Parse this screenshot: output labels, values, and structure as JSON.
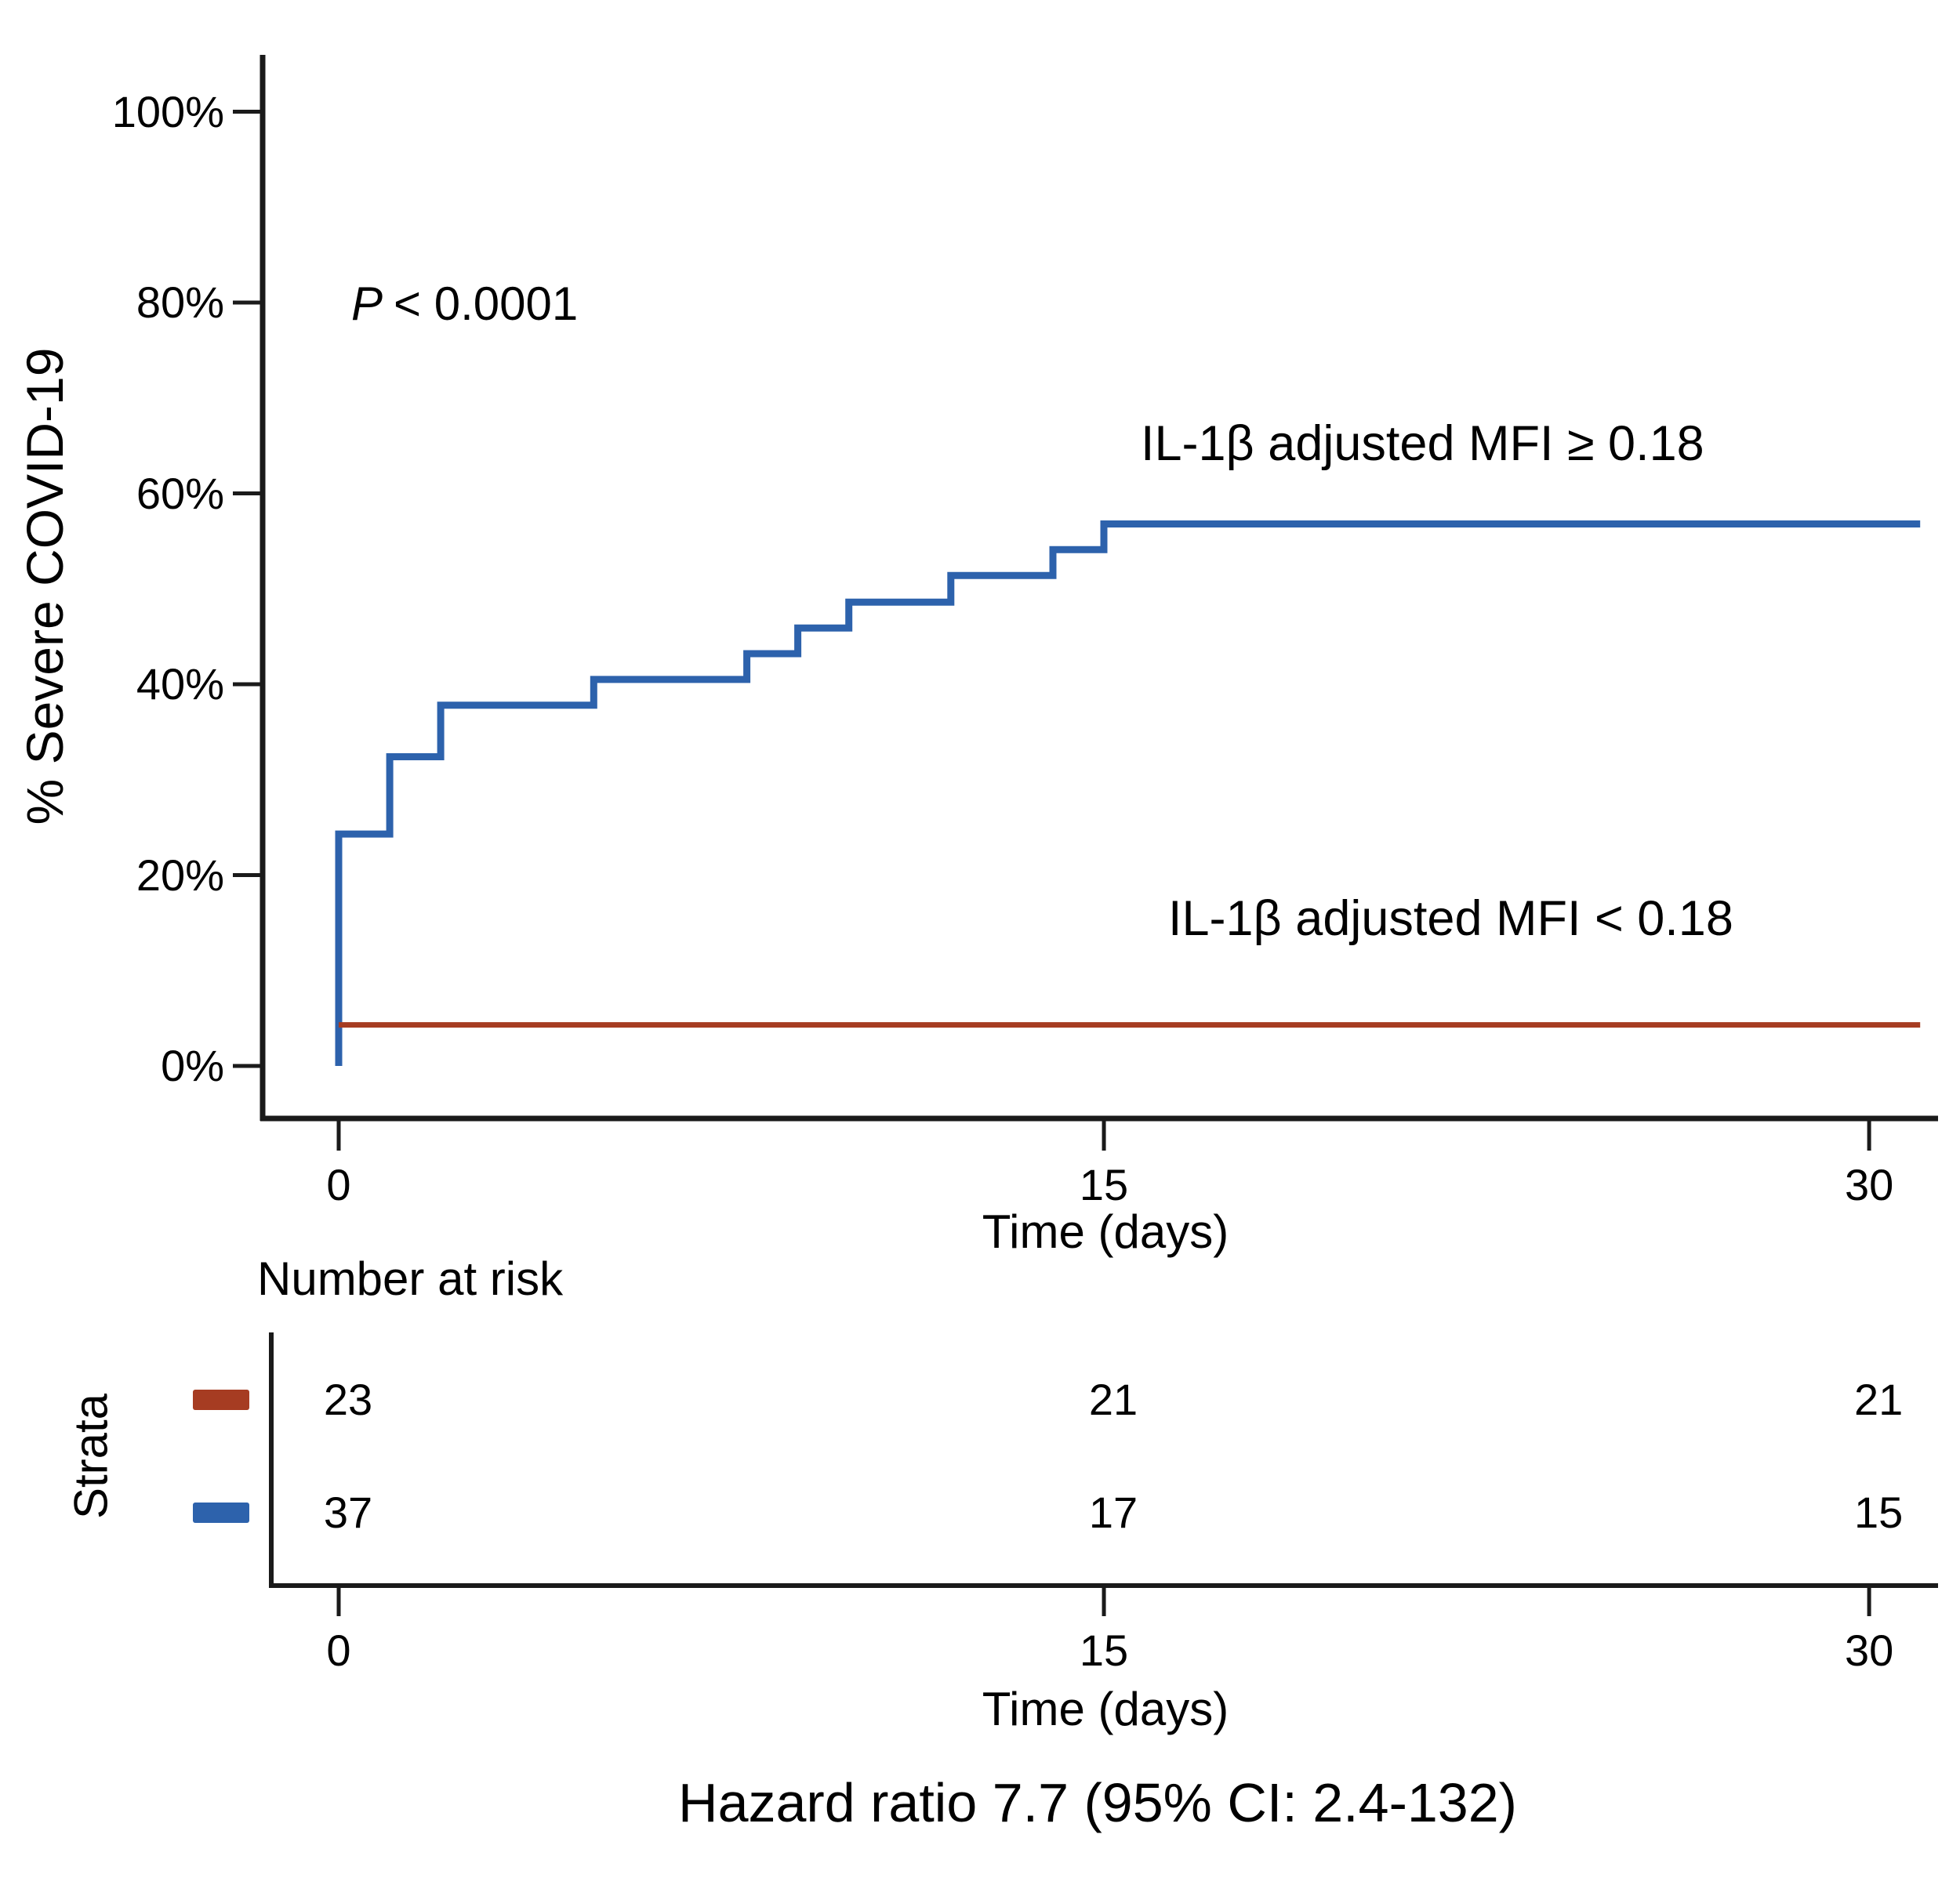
{
  "figure": {
    "background": "#ffffff",
    "p_value": {
      "label": "P",
      "value": "< 0.0001"
    }
  },
  "chart_data": {
    "type": "line",
    "subtype": "kaplan-meier-step",
    "title": "",
    "xlabel": "Time (days)",
    "ylabel": "% Severe COVID-19",
    "xlim": [
      0,
      31
    ],
    "ylim": [
      0,
      100
    ],
    "x_ticks": [
      0,
      15,
      30
    ],
    "y_ticks": [
      0,
      20,
      40,
      60,
      80,
      100
    ],
    "y_tick_suffix": "%",
    "grid": false,
    "legend_position": "inline-annotations",
    "annotation_p_value": "P < 0.0001",
    "series": [
      {
        "name": "IL-1β adjusted MFI ≥ 0.18",
        "color": "#2d62ac",
        "step": true,
        "points": [
          [
            0,
            0
          ],
          [
            0,
            24.3
          ],
          [
            1,
            32.4
          ],
          [
            2,
            37.8
          ],
          [
            5,
            40.5
          ],
          [
            8,
            43.2
          ],
          [
            9,
            45.9
          ],
          [
            10,
            48.6
          ],
          [
            12,
            51.4
          ],
          [
            14,
            54.1
          ],
          [
            15,
            56.8
          ],
          [
            31,
            56.8
          ]
        ]
      },
      {
        "name": "IL-1β adjusted MFI < 0.18",
        "color": "#a63c22",
        "step": true,
        "points": [
          [
            0,
            4.3
          ],
          [
            31,
            4.3
          ]
        ]
      }
    ],
    "risk_table": {
      "title": "Number at risk",
      "strata_label": "Strata",
      "time_points": [
        0,
        15,
        30
      ],
      "rows": [
        {
          "stratum": "IL-1β adjusted MFI < 0.18",
          "color": "#a63c22",
          "counts": [
            23,
            21,
            21
          ]
        },
        {
          "stratum": "IL-1β adjusted MFI ≥ 0.18",
          "color": "#2d62ac",
          "counts": [
            37,
            17,
            15
          ]
        }
      ]
    },
    "footer": "Hazard ratio 7.7 (95% CI: 2.4-132)"
  }
}
